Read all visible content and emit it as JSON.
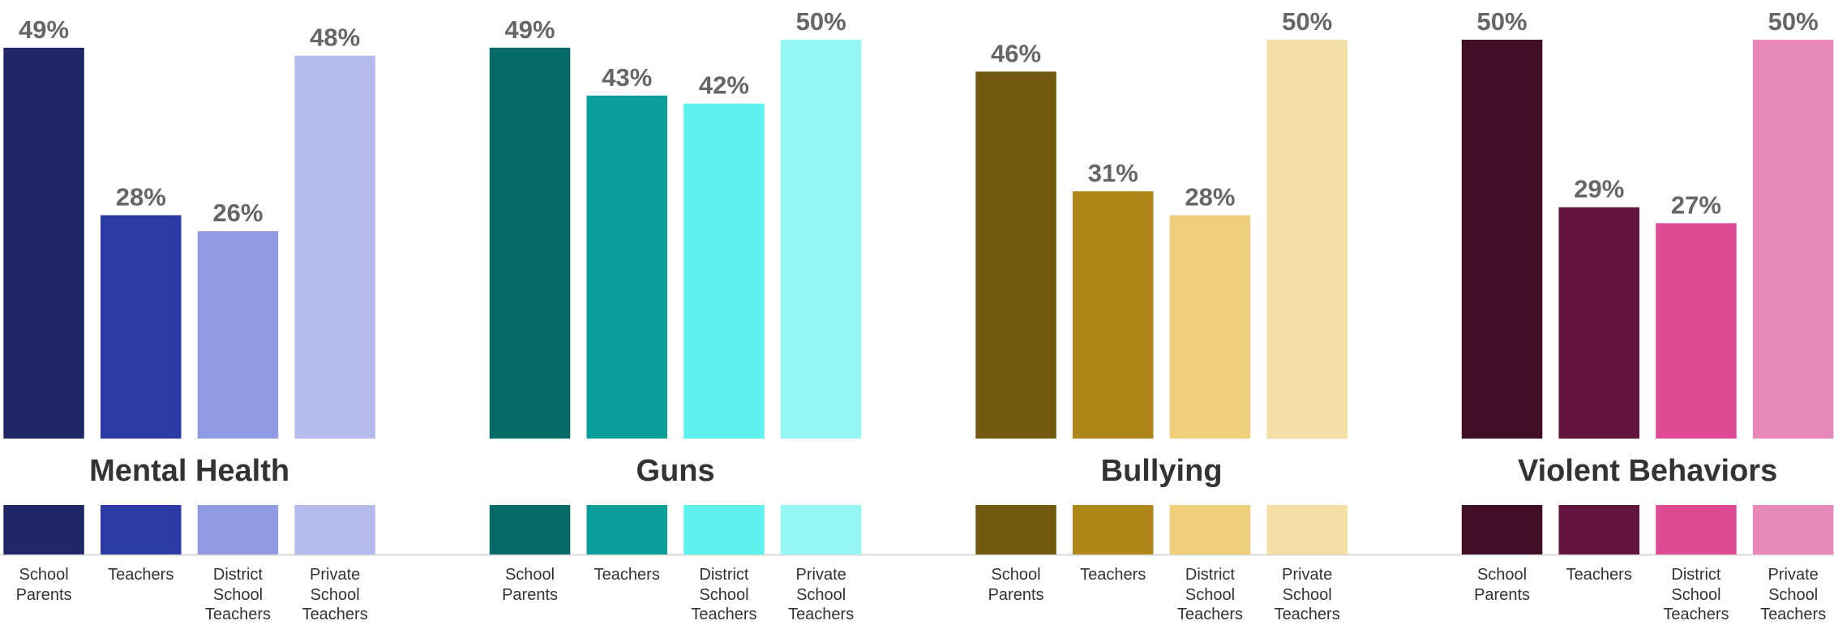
{
  "chart_data": [
    {
      "type": "bar",
      "title": "Mental Health",
      "categories": [
        "School Parents",
        "Teachers",
        "District School Teachers",
        "Private School Teachers"
      ],
      "values": [
        49,
        28,
        26,
        48
      ],
      "value_labels": [
        "49%",
        "28%",
        "26%",
        "48%"
      ],
      "colors": [
        "#1f2768",
        "#2b3aa5",
        "#919be3",
        "#b5bbec"
      ]
    },
    {
      "type": "bar",
      "title": "Guns",
      "categories": [
        "School Parents",
        "Teachers",
        "District School Teachers",
        "Private School Teachers"
      ],
      "values": [
        49,
        43,
        42,
        50
      ],
      "value_labels": [
        "49%",
        "43%",
        "42%",
        "50%"
      ],
      "colors": [
        "#066b66",
        "#0b9f9a",
        "#5df2ed",
        "#94f7f3"
      ]
    },
    {
      "type": "bar",
      "title": "Bullying",
      "categories": [
        "School Parents",
        "Teachers",
        "District School Teachers",
        "Private School Teachers"
      ],
      "values": [
        46,
        31,
        28,
        50
      ],
      "value_labels": [
        "46%",
        "31%",
        "28%",
        "50%"
      ],
      "colors": [
        "#71590f",
        "#ae8619",
        "#eecf7c",
        "#f3dfa5"
      ]
    },
    {
      "type": "bar",
      "title": "Violent Behaviors",
      "categories": [
        "School Parents",
        "Teachers",
        "District School Teachers",
        "Private School Teachers"
      ],
      "values": [
        50,
        29,
        27,
        50
      ],
      "value_labels": [
        "50%",
        "29%",
        "27%",
        "50%"
      ],
      "colors": [
        "#420e25",
        "#63143d",
        "#de4a93",
        "#e888b8"
      ]
    }
  ]
}
